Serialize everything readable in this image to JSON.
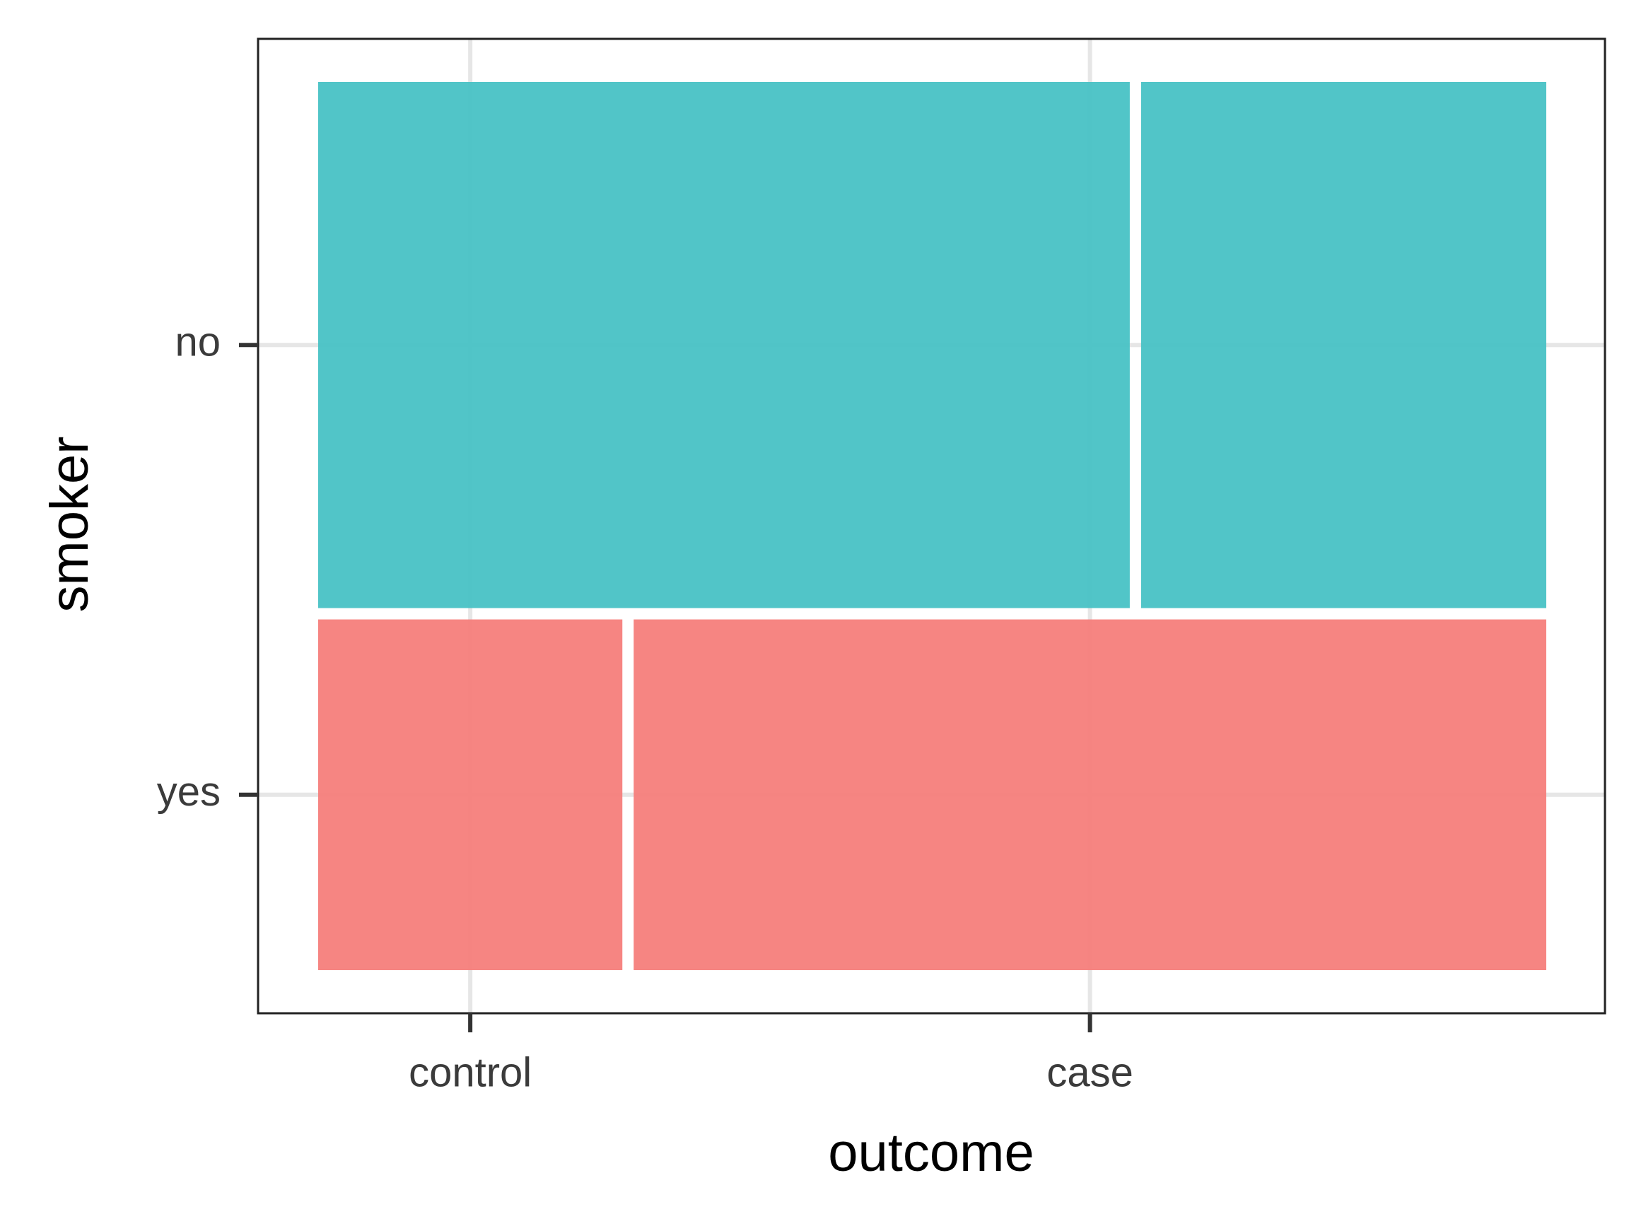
{
  "chart_data": {
    "type": "mosaic",
    "x_label": "outcome",
    "y_label": "smoker",
    "categories": [
      "control",
      "case"
    ],
    "series": [
      {
        "name": "yes",
        "color": "#f57e7b",
        "share": 0.4,
        "values": [
          0.25,
          0.75
        ]
      },
      {
        "name": "no",
        "color": "#48c2c5",
        "share": 0.6,
        "values": [
          0.667,
          0.333
        ]
      }
    ],
    "grid": true
  }
}
